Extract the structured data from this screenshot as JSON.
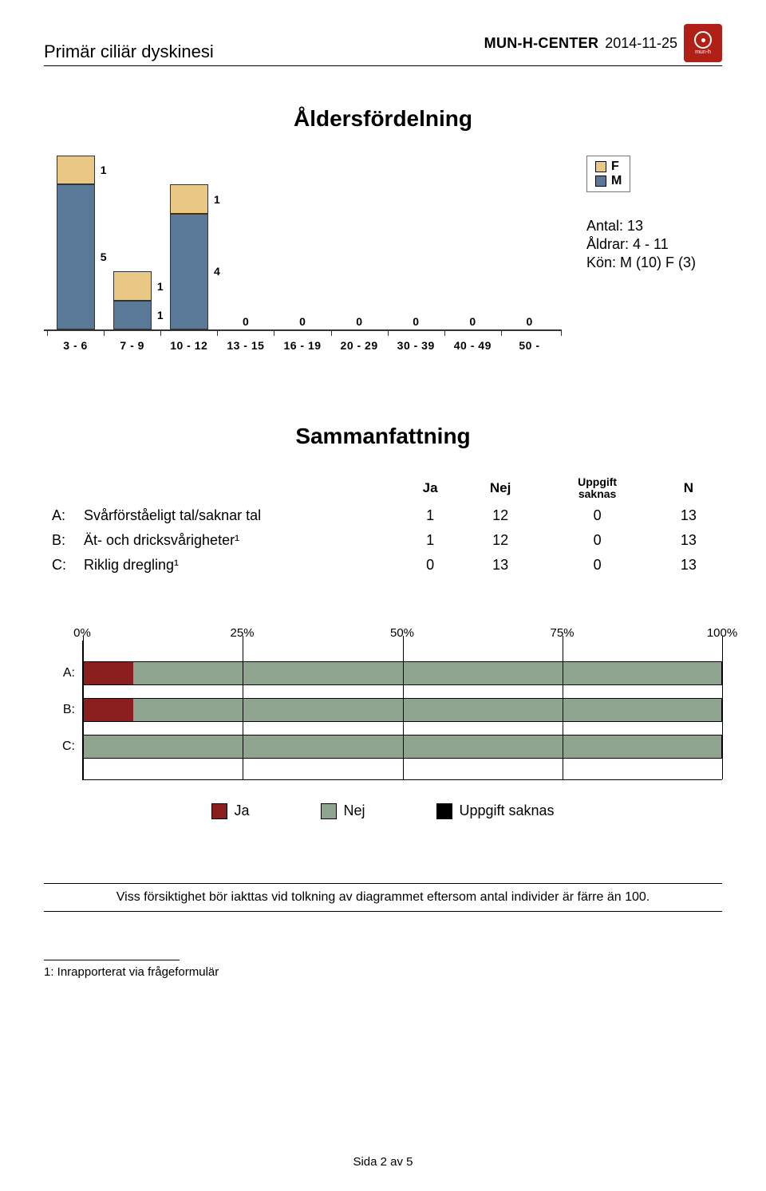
{
  "header": {
    "title": "Primär ciliär dyskinesi",
    "brand": "MUN-H-CENTER",
    "date": "2014-11-25",
    "logo_bg": "#b02016",
    "logo_text": "mun-h"
  },
  "age_chart": {
    "title": "Åldersfördelning",
    "categories": [
      "3 - 6",
      "7 - 9",
      "10 - 12",
      "13 - 15",
      "16 - 19",
      "20 - 29",
      "30 - 39",
      "40 - 49",
      "50 -"
    ],
    "y_max": 6,
    "series": [
      {
        "key": "M",
        "label": "M",
        "color": "#5a7897"
      },
      {
        "key": "F",
        "label": "F",
        "color": "#e9c886"
      }
    ],
    "data": [
      {
        "M": 5,
        "F": 1
      },
      {
        "M": 1,
        "F": 1
      },
      {
        "M": 4,
        "F": 1
      },
      {
        "M": 0,
        "F": 0
      },
      {
        "M": 0,
        "F": 0
      },
      {
        "M": 0,
        "F": 0
      },
      {
        "M": 0,
        "F": 0
      },
      {
        "M": 0,
        "F": 0
      },
      {
        "M": 0,
        "F": 0
      }
    ],
    "legend": [
      "F",
      "M"
    ],
    "legend_colors": {
      "F": "#e9c886",
      "M": "#5a7897"
    }
  },
  "side_info": {
    "antal_label": "Antal:",
    "antal_value": "13",
    "aldrar_label": "Åldrar:",
    "aldrar_value": "4 - 11",
    "kon_label": "Kön:",
    "kon_value": "M (10) F (3)"
  },
  "summary": {
    "title": "Sammanfattning",
    "columns": {
      "ja": "Ja",
      "nej": "Nej",
      "uppgift_line1": "Uppgift",
      "uppgift_line2": "saknas",
      "n": "N"
    },
    "rows": [
      {
        "key": "A:",
        "desc": "Svårförståeligt tal/saknar tal",
        "ja": 1,
        "nej": 12,
        "missing": 0,
        "n": 13
      },
      {
        "key": "B:",
        "desc": "Ät- och dricksvårigheter¹",
        "ja": 1,
        "nej": 12,
        "missing": 0,
        "n": 13
      },
      {
        "key": "C:",
        "desc": "Riklig dregling¹",
        "ja": 0,
        "nej": 13,
        "missing": 0,
        "n": 13
      }
    ]
  },
  "hbar": {
    "tick_labels": [
      "0%",
      "25%",
      "50%",
      "75%",
      "100%"
    ],
    "tick_positions": [
      0,
      25,
      50,
      75,
      100
    ],
    "row_labels": [
      "A:",
      "B:",
      "C:"
    ],
    "colors": {
      "ja": "#8b1f1f",
      "nej": "#8ea48f",
      "missing": "#000000"
    },
    "legend": [
      {
        "label": "Ja",
        "color": "#8b1f1f"
      },
      {
        "label": "Nej",
        "color": "#8ea48f"
      },
      {
        "label": "Uppgift saknas",
        "color": "#000000"
      }
    ],
    "rows": [
      {
        "ja": 7.7,
        "nej": 92.3,
        "missing": 0
      },
      {
        "ja": 7.7,
        "nej": 92.3,
        "missing": 0
      },
      {
        "ja": 0.0,
        "nej": 100.0,
        "missing": 0
      }
    ]
  },
  "note": "Viss försiktighet bör iakttas vid tolkning av diagrammet eftersom antal individer är färre än 100.",
  "footnote": "1: Inrapporterat via frågeformulär",
  "page_number": "Sida 2 av 5"
}
